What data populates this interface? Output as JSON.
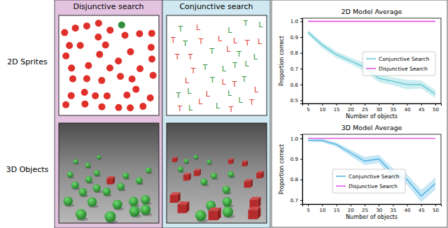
{
  "chart_data": [
    {
      "type": "line",
      "title": "2D Model Average",
      "x_label": "Number of objects",
      "y_label": "Proportion correct",
      "x": [
        5,
        10,
        15,
        20,
        25,
        30,
        35,
        40,
        45,
        50
      ],
      "series": [
        {
          "name": "Conjunctive Search",
          "color": "#56c5cf",
          "values": [
            0.93,
            0.85,
            0.79,
            0.75,
            0.71,
            0.64,
            0.62,
            0.6,
            0.6,
            0.54
          ],
          "error": [
            0.015,
            0.02,
            0.02,
            0.02,
            0.025,
            0.025,
            0.025,
            0.03,
            0.025,
            0.025
          ]
        },
        {
          "name": "Disjunctive Search",
          "color": "#e13fe0",
          "values": [
            1,
            1,
            1,
            1,
            1,
            1,
            1,
            1,
            1,
            1
          ]
        }
      ],
      "xlim": [
        3,
        52
      ],
      "ylim": [
        0.48,
        1.02
      ],
      "xticks": [
        5,
        10,
        15,
        20,
        25,
        30,
        35,
        40,
        45,
        50
      ],
      "yticks": [
        0.5,
        0.6,
        0.7,
        0.8,
        0.9,
        {
          "value": 1,
          "label": "1.0"
        }
      ],
      "grid": false,
      "legend": "center right"
    },
    {
      "type": "line",
      "title": "3D Model Average",
      "x_label": "Number of objects",
      "y_label": "Proportion correct",
      "x": [
        5,
        10,
        15,
        20,
        25,
        30,
        35,
        40,
        45,
        50
      ],
      "series": [
        {
          "name": "Conjunctive Search",
          "color": "#44aee0",
          "values": [
            0.99,
            0.99,
            0.97,
            0.93,
            0.89,
            0.9,
            0.83,
            0.8,
            0.72,
            0.78
          ],
          "error": [
            0.005,
            0.008,
            0.01,
            0.015,
            0.02,
            0.02,
            0.025,
            0.025,
            0.03,
            0.03
          ]
        },
        {
          "name": "Disjunctive Search",
          "color": "#e13fe0",
          "values": [
            1,
            1,
            1,
            1,
            1,
            1,
            1,
            1,
            1,
            1
          ]
        }
      ],
      "xlim": [
        3,
        52
      ],
      "ylim": [
        0.68,
        1.02
      ],
      "xticks": [
        5,
        10,
        15,
        20,
        25,
        30,
        35,
        40,
        45,
        50
      ],
      "yticks": [
        0.7,
        0.8,
        0.9,
        {
          "value": 1,
          "label": "1.0"
        }
      ],
      "grid": false,
      "legend": "lower center"
    }
  ],
  "figure": {
    "column_titles": [
      "Disjunctive search",
      "Conjunctive search"
    ],
    "row_labels": [
      "2D Sprites",
      "3D Objects"
    ],
    "glyphs": [
      "T",
      "L"
    ]
  }
}
